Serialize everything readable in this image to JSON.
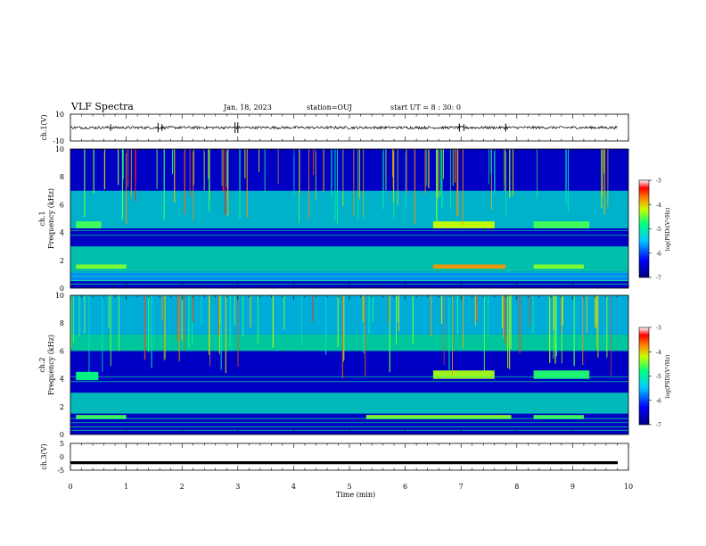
{
  "header": {
    "title": "VLF Spectra",
    "date": "Jan. 18, 2023",
    "station": "station=OUJ",
    "start": "start UT =  8 : 30: 0"
  },
  "chart_data": [
    {
      "type": "line",
      "panel": "ch1-waveform",
      "ylabel": "ch.1(V)",
      "ylim": [
        -10,
        10
      ],
      "y_ticks": [
        "10",
        "-10"
      ],
      "baseline": 0,
      "noise_amplitude": 1,
      "impulses": [
        {
          "t": 0.72,
          "v": 2.5
        },
        {
          "t": 1.57,
          "v": 3.5
        },
        {
          "t": 1.64,
          "v": 2.5
        },
        {
          "t": 2.95,
          "v": 4
        },
        {
          "t": 3.0,
          "v": 4
        },
        {
          "t": 6.97,
          "v": 3
        },
        {
          "t": 7.05,
          "v": 2.5
        },
        {
          "t": 7.8,
          "v": -3
        }
      ]
    },
    {
      "type": "heatmap",
      "panel": "ch1-spectrogram",
      "title": "ch.1",
      "ylabel": "Frequency (kHz)",
      "xlim": [
        0,
        10
      ],
      "ylim": [
        0,
        10
      ],
      "y_ticks": [
        "0",
        "2",
        "4",
        "6",
        "8",
        "10"
      ],
      "colorbar": {
        "label": "log(PSD)(V²/Hz)",
        "range": [
          -7,
          -3
        ],
        "ticks": [
          "-3",
          "-4",
          "-5",
          "-6",
          "-7"
        ]
      },
      "features": [
        {
          "kind": "broadband background",
          "freq_khz": [
            4.3,
            7.0
          ],
          "level": -5.2
        },
        {
          "kind": "enhanced band",
          "freq_khz": [
            1.2,
            3.0
          ],
          "level": -5.0
        },
        {
          "kind": "lower band",
          "freq_khz": [
            0.5,
            1.2
          ],
          "level": -5.6
        },
        {
          "kind": "chorus band",
          "t_min": [
            0.1,
            0.55
          ],
          "freq_khz": [
            4.3,
            4.8
          ],
          "level": -4.6
        },
        {
          "kind": "chorus band",
          "t_min": [
            6.5,
            7.6
          ],
          "freq_khz": [
            4.3,
            4.8
          ],
          "level": -4.2
        },
        {
          "kind": "chorus band",
          "t_min": [
            8.3,
            9.3
          ],
          "freq_khz": [
            4.3,
            4.8
          ],
          "level": -4.6
        },
        {
          "kind": "hiss band",
          "t_min": [
            0.1,
            1.0
          ],
          "freq_khz": [
            1.4,
            1.7
          ],
          "level": -4.4
        },
        {
          "kind": "hiss band",
          "t_min": [
            6.5,
            7.8
          ],
          "freq_khz": [
            1.4,
            1.7
          ],
          "level": -3.8
        },
        {
          "kind": "hiss band",
          "t_min": [
            8.3,
            9.2
          ],
          "freq_khz": [
            1.4,
            1.7
          ],
          "level": -4.4
        }
      ]
    },
    {
      "type": "heatmap",
      "panel": "ch2-spectrogram",
      "title": "ch.2",
      "ylabel": "Frequency (kHz)",
      "xlim": [
        0,
        10
      ],
      "ylim": [
        0,
        10
      ],
      "y_ticks": [
        "0",
        "2",
        "4",
        "6",
        "8",
        "10"
      ],
      "colorbar": {
        "label": "log(PSD)(V²/Hz)",
        "range": [
          -7,
          -3
        ],
        "ticks": [
          "-3",
          "-4",
          "-5",
          "-6",
          "-7"
        ]
      },
      "features": [
        {
          "kind": "broadband background",
          "freq_khz": [
            6.0,
            7.2
          ],
          "level": -4.9
        },
        {
          "kind": "upper background",
          "freq_khz": [
            7.2,
            10
          ],
          "level": -5.3
        },
        {
          "kind": "enhanced band",
          "freq_khz": [
            1.5,
            3.0
          ],
          "level": -5.1
        },
        {
          "kind": "chorus band",
          "t_min": [
            0.1,
            0.5
          ],
          "freq_khz": [
            3.9,
            4.5
          ],
          "level": -4.8
        },
        {
          "kind": "chorus band",
          "t_min": [
            6.5,
            7.6
          ],
          "freq_khz": [
            4.0,
            4.6
          ],
          "level": -4.3
        },
        {
          "kind": "chorus band",
          "t_min": [
            8.3,
            9.3
          ],
          "freq_khz": [
            4.0,
            4.6
          ],
          "level": -4.7
        },
        {
          "kind": "hiss band",
          "t_min": [
            0.1,
            1.0
          ],
          "freq_khz": [
            1.1,
            1.4
          ],
          "level": -4.6
        },
        {
          "kind": "hiss band",
          "t_min": [
            5.3,
            7.9
          ],
          "freq_khz": [
            1.1,
            1.4
          ],
          "level": -4.4
        },
        {
          "kind": "hiss band",
          "t_min": [
            8.3,
            9.2
          ],
          "freq_khz": [
            1.1,
            1.4
          ],
          "level": -4.6
        }
      ]
    },
    {
      "type": "line",
      "panel": "ch3-waveform",
      "ylabel": "ch.3(V)",
      "ylim": [
        -5,
        5
      ],
      "y_ticks": [
        "5",
        "0",
        "-5"
      ],
      "baseline": -2.2,
      "noise_amplitude": 0.2
    }
  ],
  "x_axis": {
    "xlabel": "Time (min)",
    "xlim": [
      0,
      10
    ],
    "tick_labels": [
      "0",
      "1",
      "2",
      "3",
      "4",
      "5",
      "6",
      "7",
      "8",
      "9",
      "10"
    ]
  }
}
